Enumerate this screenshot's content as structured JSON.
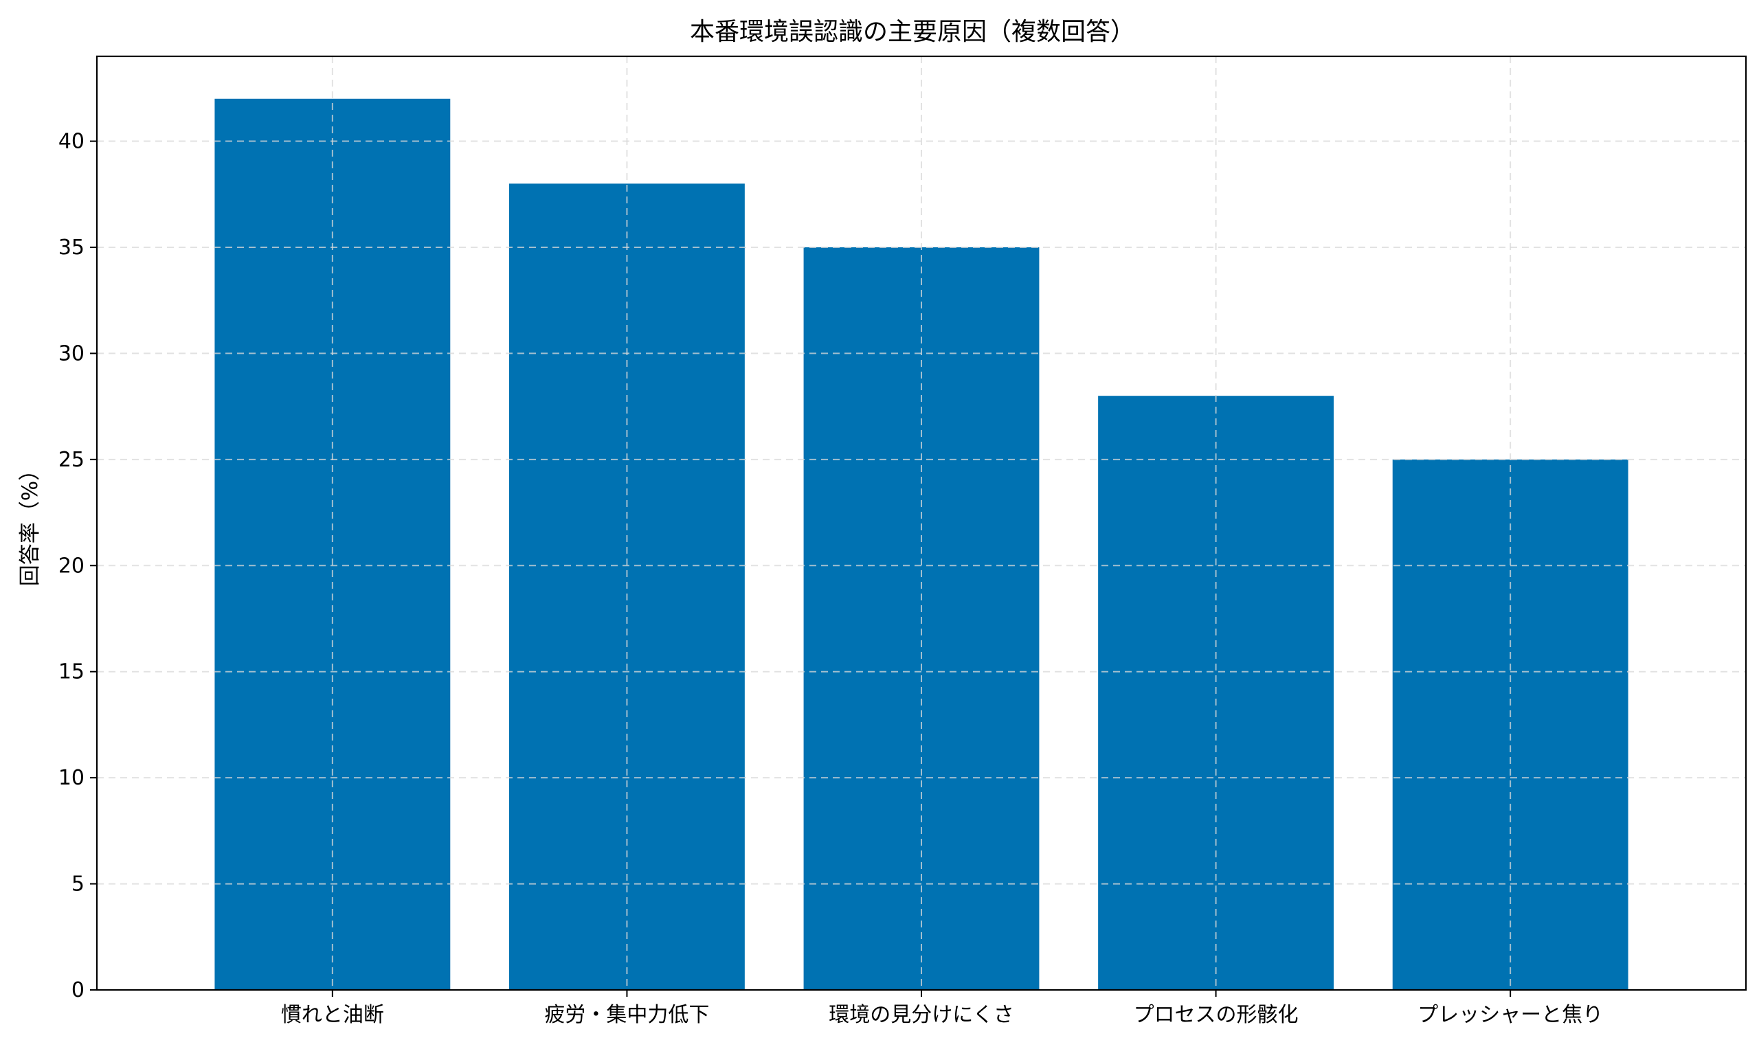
{
  "chart_data": {
    "type": "bar",
    "title": "本番環境誤認識の主要原因（複数回答）",
    "xlabel": "",
    "ylabel": "回答率（%）",
    "categories": [
      "慣れと油断",
      "疲労・集中力低下",
      "環境の見分けにくさ",
      "プロセスの形骸化",
      "プレッシャーと焦り"
    ],
    "values": [
      42,
      38,
      35,
      28,
      25
    ],
    "ylim": [
      0,
      44
    ],
    "yticks": [
      0,
      5,
      10,
      15,
      20,
      25,
      30,
      35,
      40
    ],
    "grid": true,
    "bar_color": "#0072b2"
  }
}
